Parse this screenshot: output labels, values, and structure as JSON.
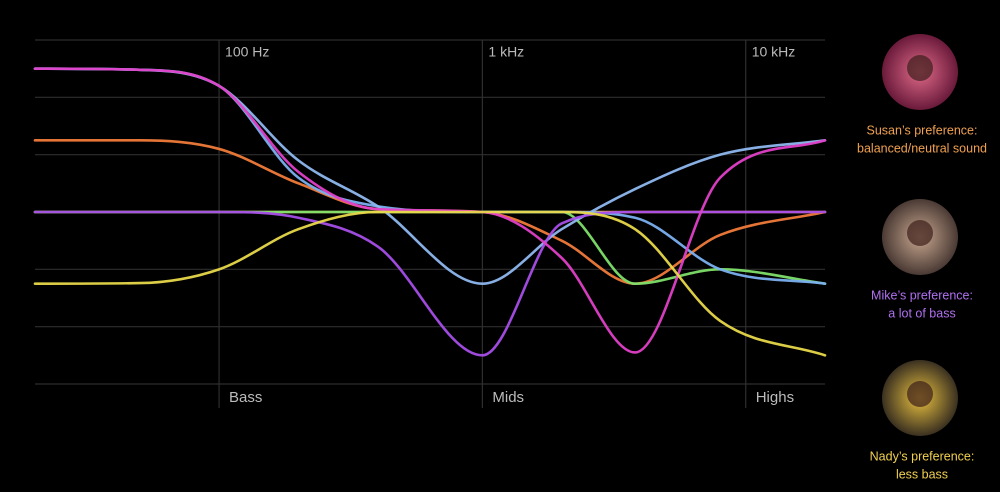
{
  "chart_data": {
    "type": "line",
    "log_x": true,
    "grid": true,
    "xlim": [
      20,
      20000
    ],
    "xticks": [
      {
        "value": 100,
        "label": "100 Hz"
      },
      {
        "value": 1000,
        "label": "1 kHz"
      },
      {
        "value": 10000,
        "label": "10 kHz"
      }
    ],
    "band_labels": [
      "Bass",
      "Mids",
      "Highs"
    ],
    "ylim": [
      -3,
      3
    ],
    "yticks": [
      -3,
      -2,
      -1,
      0,
      1,
      2,
      3
    ],
    "x": [
      20,
      50,
      100,
      200,
      400,
      1000,
      2000,
      3800,
      8000,
      20000
    ],
    "series": [
      {
        "color": "#f5a04a",
        "values": [
          0,
          0,
          0,
          0,
          0,
          0,
          0,
          0,
          0,
          0
        ]
      },
      {
        "color": "#f07b3a",
        "values": [
          1.25,
          1.25,
          1.1,
          0.5,
          0.05,
          0,
          -0.5,
          -1.25,
          -0.4,
          0
        ]
      },
      {
        "color": "#7ee06a",
        "values": [
          0,
          0,
          0,
          0,
          0,
          0,
          0,
          -1.25,
          -1.0,
          -1.25
        ]
      },
      {
        "color": "#7ab0f0",
        "values": [
          2.5,
          2.48,
          2.2,
          0.6,
          0.1,
          0,
          0,
          -0.1,
          -1.0,
          -1.25
        ]
      },
      {
        "color": "#8fb8f0",
        "values": [
          2.5,
          2.48,
          2.2,
          0.9,
          0.1,
          -1.25,
          -0.3,
          0.4,
          1.0,
          1.25
        ]
      },
      {
        "color": "#a64ee8",
        "values": [
          0,
          0,
          0,
          -0.1,
          -0.6,
          -2.5,
          -0.2,
          0,
          0,
          0
        ]
      },
      {
        "color": "#e040c8",
        "values": [
          2.5,
          2.48,
          2.2,
          0.7,
          0.05,
          0,
          -0.8,
          -2.45,
          0.6,
          1.25
        ]
      },
      {
        "color": "#e8d84a",
        "values": [
          -1.25,
          -1.24,
          -1.0,
          -0.3,
          0,
          0,
          0,
          -0.3,
          -1.9,
          -2.5
        ]
      }
    ]
  },
  "profiles": [
    {
      "color": "#f0a050",
      "lines": [
        "Susan’s preference:",
        "balanced/neutral sound"
      ]
    },
    {
      "color": "#b070f0",
      "lines": [
        "Mike’s preference:",
        "a lot of bass"
      ]
    },
    {
      "color": "#f0d050",
      "lines": [
        "Nady’s preference:",
        "less bass"
      ]
    }
  ]
}
